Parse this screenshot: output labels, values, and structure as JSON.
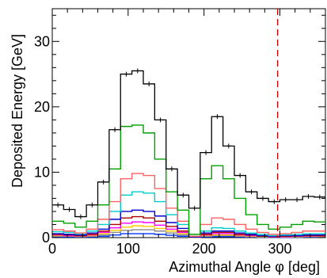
{
  "chart_data": {
    "type": "line",
    "title": "",
    "xlabel": "Azimuthal Angle φ [deg]",
    "ylabel": "Deposited Energy [GeV]",
    "xlim": [
      0,
      360
    ],
    "ylim": [
      0,
      35
    ],
    "x_ticks": [
      0,
      100,
      200,
      300
    ],
    "y_ticks": [
      0,
      10,
      20,
      30
    ],
    "reference_line": {
      "x": 297,
      "color": "#cc0000",
      "style": "dashed"
    },
    "bin_edges": [
      0,
      15,
      30,
      45,
      60,
      75,
      90,
      105,
      120,
      135,
      150,
      165,
      180,
      195,
      210,
      225,
      240,
      255,
      270,
      285,
      300,
      315,
      330,
      345,
      360
    ],
    "series": [
      {
        "color": "#000000",
        "values": [
          5.0,
          4.3,
          3.2,
          5.0,
          8.5,
          16.5,
          25.0,
          25.5,
          23.5,
          18.0,
          10.5,
          6.5,
          4.5,
          13.0,
          18.5,
          14.0,
          9.5,
          7.0,
          6.0,
          5.5,
          5.8,
          5.8,
          6.3,
          6.2
        ]
      },
      {
        "color": "#00a000",
        "values": [
          2.5,
          2.2,
          1.6,
          2.5,
          5.0,
          10.5,
          17.0,
          17.2,
          16.0,
          12.0,
          7.0,
          4.2,
          0.5,
          9.0,
          11.0,
          9.0,
          6.0,
          3.5,
          2.0,
          1.3,
          1.6,
          2.0,
          2.5,
          2.4
        ]
      },
      {
        "color": "#ff6060",
        "values": [
          1.2,
          1.0,
          0.7,
          1.3,
          2.8,
          5.5,
          9.0,
          9.8,
          9.5,
          7.5,
          4.5,
          2.5,
          0.2,
          2.0,
          3.0,
          2.8,
          2.0,
          1.3,
          0.8,
          0.5,
          0.6,
          0.8,
          1.0,
          1.0
        ]
      },
      {
        "color": "#00cccc",
        "values": [
          0.9,
          0.8,
          0.6,
          1.0,
          2.0,
          4.0,
          6.5,
          7.0,
          6.8,
          5.5,
          3.5,
          2.0,
          0.2,
          1.0,
          1.5,
          1.4,
          1.0,
          0.7,
          0.5,
          0.3,
          0.4,
          0.5,
          0.6,
          0.6
        ]
      },
      {
        "color": "#0000cc",
        "values": [
          0.6,
          0.5,
          0.4,
          0.7,
          1.3,
          2.8,
          4.0,
          4.2,
          4.0,
          3.3,
          2.3,
          1.4,
          0.1,
          0.7,
          1.0,
          1.0,
          0.7,
          0.5,
          0.3,
          0.2,
          0.3,
          0.3,
          0.4,
          0.4
        ]
      },
      {
        "color": "#aa0000",
        "values": [
          0.5,
          0.4,
          0.3,
          0.5,
          1.0,
          2.0,
          3.0,
          3.2,
          3.0,
          2.5,
          1.7,
          1.0,
          0.1,
          0.5,
          0.8,
          0.8,
          0.5,
          0.4,
          0.2,
          0.15,
          0.2,
          0.25,
          0.3,
          0.3
        ]
      },
      {
        "color": "#ff00ff",
        "values": [
          0.4,
          0.3,
          0.25,
          0.4,
          0.8,
          1.5,
          2.2,
          2.4,
          2.3,
          1.9,
          1.3,
          0.8,
          0.1,
          0.4,
          0.6,
          0.6,
          0.4,
          0.3,
          0.2,
          0.1,
          0.15,
          0.2,
          0.25,
          0.25
        ]
      },
      {
        "color": "#ffcc00",
        "values": [
          0.3,
          0.25,
          0.2,
          0.3,
          0.6,
          1.1,
          1.6,
          1.8,
          1.7,
          1.4,
          1.0,
          0.6,
          0.05,
          0.3,
          0.4,
          0.4,
          0.3,
          0.2,
          0.15,
          0.1,
          0.1,
          0.15,
          0.2,
          0.2
        ]
      },
      {
        "color": "#888888",
        "values": [
          0.2,
          0.2,
          0.15,
          0.2,
          0.4,
          0.8,
          1.1,
          1.2,
          1.2,
          1.0,
          0.7,
          0.4,
          0.05,
          0.2,
          0.3,
          0.3,
          0.2,
          0.15,
          0.1,
          0.08,
          0.08,
          0.1,
          0.15,
          0.15
        ]
      },
      {
        "color": "#0033ff",
        "values": [
          0.1,
          0.1,
          0.08,
          0.1,
          0.2,
          0.4,
          0.6,
          0.6,
          0.6,
          0.5,
          0.35,
          0.2,
          0.02,
          0.1,
          0.15,
          0.15,
          0.1,
          0.08,
          0.05,
          0.04,
          0.04,
          0.05,
          0.08,
          0.08
        ]
      }
    ]
  }
}
